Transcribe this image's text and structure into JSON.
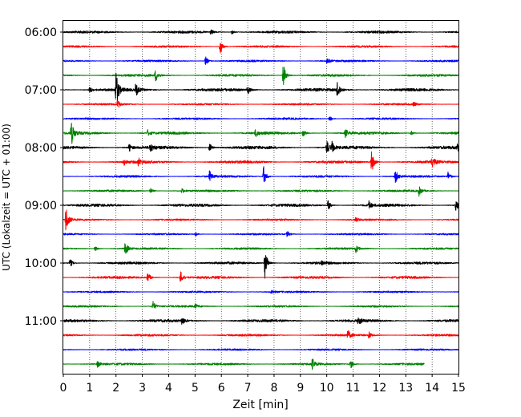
{
  "chart_data": {
    "type": "line",
    "title": "",
    "xlabel": "Zeit  [min]",
    "ylabel": "UTC (Lokalzeit = UTC + 01:00)",
    "xlim": [
      0,
      15
    ],
    "x_ticks": [
      "0",
      "1",
      "2",
      "3",
      "4",
      "5",
      "6",
      "7",
      "8",
      "9",
      "10",
      "11",
      "12",
      "13",
      "14",
      "15"
    ],
    "y_ticks": [
      "06:00",
      "07:00",
      "08:00",
      "09:00",
      "10:00",
      "11:00"
    ],
    "grid": "vertical dotted lines at each minute",
    "trace_interval_min": 15,
    "first_trace": "06:00",
    "colors": [
      "#000000",
      "#ff0000",
      "#0000ff",
      "#008000"
    ],
    "traces": [
      {
        "start": "06:00",
        "color": "#000000",
        "noise": 1.5,
        "events": [
          {
            "t": 5.6,
            "amp": 3
          },
          {
            "t": 6.4,
            "amp": 3
          }
        ]
      },
      {
        "start": "06:15",
        "color": "#ff0000",
        "noise": 1.2,
        "events": [
          {
            "t": 5.95,
            "amp": 10
          }
        ]
      },
      {
        "start": "06:30",
        "color": "#0000ff",
        "noise": 1.2,
        "events": [
          {
            "t": 5.4,
            "amp": 6
          },
          {
            "t": 10.0,
            "amp": 4
          }
        ]
      },
      {
        "start": "06:45",
        "color": "#008000",
        "noise": 1.4,
        "events": [
          {
            "t": 3.5,
            "amp": 8
          },
          {
            "t": 8.35,
            "amp": 16
          }
        ]
      },
      {
        "start": "07:00",
        "color": "#000000",
        "noise": 1.8,
        "events": [
          {
            "t": 1.0,
            "amp": 4
          },
          {
            "t": 2.0,
            "amp": 24
          },
          {
            "t": 2.75,
            "amp": 8
          },
          {
            "t": 7.0,
            "amp": 6
          },
          {
            "t": 10.4,
            "amp": 12
          }
        ]
      },
      {
        "start": "07:15",
        "color": "#ff0000",
        "noise": 1.1,
        "events": [
          {
            "t": 2.05,
            "amp": 6
          },
          {
            "t": 13.3,
            "amp": 3
          }
        ]
      },
      {
        "start": "07:30",
        "color": "#0000ff",
        "noise": 1.2,
        "events": [
          {
            "t": 10.1,
            "amp": 4
          }
        ]
      },
      {
        "start": "07:45",
        "color": "#008000",
        "noise": 1.6,
        "events": [
          {
            "t": 0.3,
            "amp": 16
          },
          {
            "t": 3.2,
            "amp": 4
          },
          {
            "t": 7.3,
            "amp": 5
          },
          {
            "t": 9.1,
            "amp": 5
          },
          {
            "t": 10.7,
            "amp": 6
          },
          {
            "t": 13.2,
            "amp": 3
          }
        ]
      },
      {
        "start": "08:00",
        "color": "#000000",
        "noise": 1.9,
        "events": [
          {
            "t": 2.5,
            "amp": 5
          },
          {
            "t": 3.3,
            "amp": 5
          },
          {
            "t": 5.55,
            "amp": 6
          },
          {
            "t": 10.0,
            "amp": 9
          },
          {
            "t": 10.2,
            "amp": 6
          },
          {
            "t": 14.95,
            "amp": 5
          }
        ]
      },
      {
        "start": "08:15",
        "color": "#ff0000",
        "noise": 1.6,
        "events": [
          {
            "t": 2.3,
            "amp": 4
          },
          {
            "t": 2.85,
            "amp": 5
          },
          {
            "t": 11.7,
            "amp": 15
          },
          {
            "t": 14.0,
            "amp": 7
          }
        ]
      },
      {
        "start": "08:30",
        "color": "#0000ff",
        "noise": 1.3,
        "events": [
          {
            "t": 5.55,
            "amp": 7
          },
          {
            "t": 7.6,
            "amp": 13
          },
          {
            "t": 12.6,
            "amp": 9
          },
          {
            "t": 14.6,
            "amp": 6
          }
        ]
      },
      {
        "start": "08:45",
        "color": "#008000",
        "noise": 1.2,
        "events": [
          {
            "t": 3.3,
            "amp": 4
          },
          {
            "t": 4.5,
            "amp": 3
          },
          {
            "t": 13.5,
            "amp": 6
          }
        ]
      },
      {
        "start": "09:00",
        "color": "#000000",
        "noise": 1.7,
        "events": [
          {
            "t": 10.05,
            "amp": 7
          },
          {
            "t": 11.6,
            "amp": 5
          },
          {
            "t": 14.9,
            "amp": 7
          }
        ]
      },
      {
        "start": "09:15",
        "color": "#ff0000",
        "noise": 1.1,
        "events": [
          {
            "t": 0.1,
            "amp": 18
          },
          {
            "t": 11.1,
            "amp": 3
          }
        ]
      },
      {
        "start": "09:30",
        "color": "#0000ff",
        "noise": 1.1,
        "events": [
          {
            "t": 8.5,
            "amp": 4
          },
          {
            "t": 5.0,
            "amp": 3
          }
        ]
      },
      {
        "start": "09:45",
        "color": "#008000",
        "noise": 1.2,
        "events": [
          {
            "t": 1.2,
            "amp": 4
          },
          {
            "t": 2.35,
            "amp": 9
          },
          {
            "t": 11.1,
            "amp": 5
          }
        ]
      },
      {
        "start": "10:00",
        "color": "#000000",
        "noise": 1.5,
        "events": [
          {
            "t": 0.25,
            "amp": 6
          },
          {
            "t": 7.65,
            "amp": 20
          },
          {
            "t": 9.8,
            "amp": 3
          }
        ]
      },
      {
        "start": "10:15",
        "color": "#ff0000",
        "noise": 1.5,
        "events": [
          {
            "t": 3.2,
            "amp": 7
          },
          {
            "t": 4.45,
            "amp": 8
          }
        ]
      },
      {
        "start": "10:30",
        "color": "#0000ff",
        "noise": 1.1,
        "events": [
          {
            "t": 7.9,
            "amp": 3
          }
        ]
      },
      {
        "start": "10:45",
        "color": "#008000",
        "noise": 1.2,
        "events": [
          {
            "t": 3.4,
            "amp": 7
          },
          {
            "t": 5.0,
            "amp": 3
          }
        ]
      },
      {
        "start": "11:00",
        "color": "#000000",
        "noise": 1.6,
        "events": [
          {
            "t": 4.5,
            "amp": 5
          },
          {
            "t": 11.2,
            "amp": 5
          }
        ]
      },
      {
        "start": "11:15",
        "color": "#ff0000",
        "noise": 1.3,
        "events": [
          {
            "t": 10.8,
            "amp": 6
          },
          {
            "t": 11.6,
            "amp": 4
          }
        ]
      },
      {
        "start": "11:30",
        "color": "#0000ff",
        "noise": 1.1,
        "events": []
      },
      {
        "start": "11:45",
        "color": "#008000",
        "noise": 1.3,
        "events": [
          {
            "t": 1.3,
            "amp": 4
          },
          {
            "t": 9.45,
            "amp": 7
          },
          {
            "t": 10.9,
            "amp": 6
          }
        ],
        "end_min": 13.7
      }
    ]
  }
}
